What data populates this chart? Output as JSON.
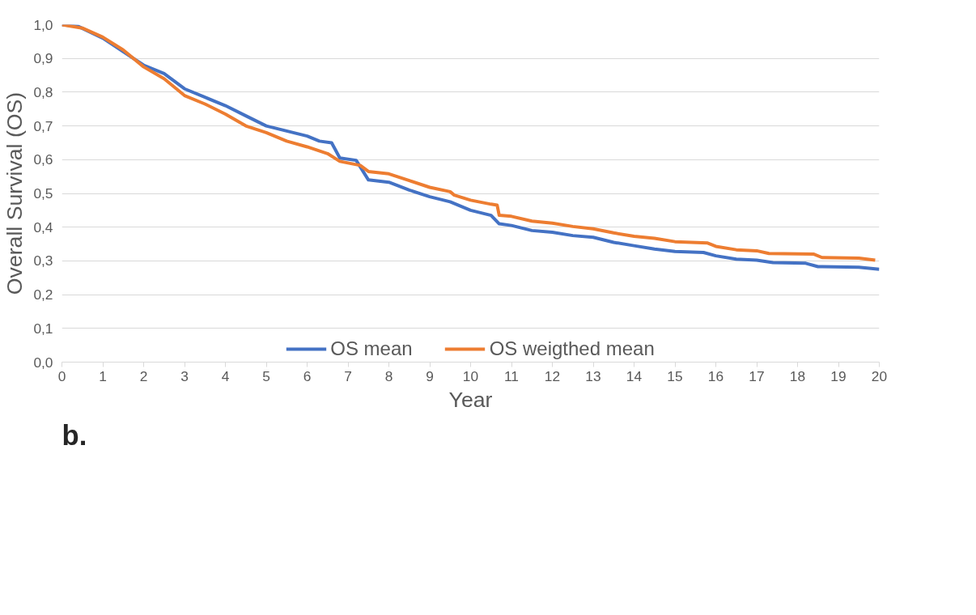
{
  "chart_data": {
    "type": "line",
    "xlabel": "Year",
    "ylabel": "Overall Survival (OS)",
    "annotations": [
      "b."
    ],
    "xlim": [
      0,
      20
    ],
    "xticks": [
      0,
      1,
      2,
      3,
      4,
      5,
      6,
      7,
      8,
      9,
      10,
      11,
      12,
      13,
      14,
      15,
      16,
      17,
      18,
      19,
      20
    ],
    "ylim": [
      0,
      1
    ],
    "yticks": [
      {
        "value": 0,
        "label": "0,0"
      },
      {
        "value": 0.1,
        "label": "0,1"
      },
      {
        "value": 0.2,
        "label": "0,2"
      },
      {
        "value": 0.3,
        "label": "0,3"
      },
      {
        "value": 0.4,
        "label": "0,4"
      },
      {
        "value": 0.5,
        "label": "0,5"
      },
      {
        "value": 0.6,
        "label": "0,6"
      },
      {
        "value": 0.7,
        "label": "0,7"
      },
      {
        "value": 0.8,
        "label": "0,8"
      },
      {
        "value": 0.9,
        "label": "0,9"
      },
      {
        "value": 1,
        "label": "1,0"
      }
    ],
    "grid": "y",
    "legend": "bottom",
    "marker": "none",
    "line_style": "solid",
    "series": [
      {
        "name": "OS mean",
        "color": "#4472c4",
        "x": [
          0,
          0.4,
          1,
          1.5,
          2,
          2.5,
          3,
          3.5,
          4,
          4.5,
          5,
          5.5,
          6,
          6.3,
          6.6,
          6.8,
          7.2,
          7.5,
          8,
          8.5,
          9,
          9.5,
          10,
          10.5,
          10.7,
          11,
          11.5,
          12,
          12.5,
          13,
          13.5,
          14,
          14.5,
          15,
          15.7,
          16,
          16.5,
          17,
          17.4,
          18.2,
          18.5,
          19.5,
          20
        ],
        "values": [
          1.0,
          0.995,
          0.96,
          0.92,
          0.88,
          0.855,
          0.81,
          0.785,
          0.76,
          0.73,
          0.7,
          0.685,
          0.67,
          0.655,
          0.65,
          0.605,
          0.598,
          0.54,
          0.533,
          0.51,
          0.49,
          0.475,
          0.45,
          0.435,
          0.41,
          0.405,
          0.39,
          0.385,
          0.375,
          0.37,
          0.355,
          0.345,
          0.335,
          0.328,
          0.325,
          0.315,
          0.305,
          0.302,
          0.295,
          0.293,
          0.283,
          0.281,
          0.275
        ]
      },
      {
        "name": "OS weigthed mean",
        "color": "#ed7d31",
        "x": [
          0,
          0.5,
          1,
          1.5,
          2,
          2.5,
          3,
          3.5,
          4,
          4.5,
          5,
          5.5,
          6,
          6.5,
          6.8,
          7.3,
          7.5,
          8,
          8.5,
          9,
          9.5,
          9.6,
          10,
          10.5,
          10.65,
          10.7,
          11,
          11.5,
          12,
          12.5,
          13,
          13.5,
          14,
          14.5,
          15,
          15.8,
          16,
          16.5,
          17,
          17.3,
          18.4,
          18.6,
          19.5,
          19.9
        ],
        "values": [
          1.0,
          0.99,
          0.963,
          0.925,
          0.875,
          0.84,
          0.79,
          0.765,
          0.735,
          0.7,
          0.68,
          0.655,
          0.638,
          0.618,
          0.595,
          0.583,
          0.565,
          0.558,
          0.538,
          0.518,
          0.505,
          0.495,
          0.48,
          0.468,
          0.465,
          0.435,
          0.432,
          0.418,
          0.412,
          0.402,
          0.395,
          0.383,
          0.373,
          0.367,
          0.357,
          0.353,
          0.343,
          0.333,
          0.33,
          0.322,
          0.32,
          0.31,
          0.308,
          0.302
        ]
      }
    ]
  }
}
